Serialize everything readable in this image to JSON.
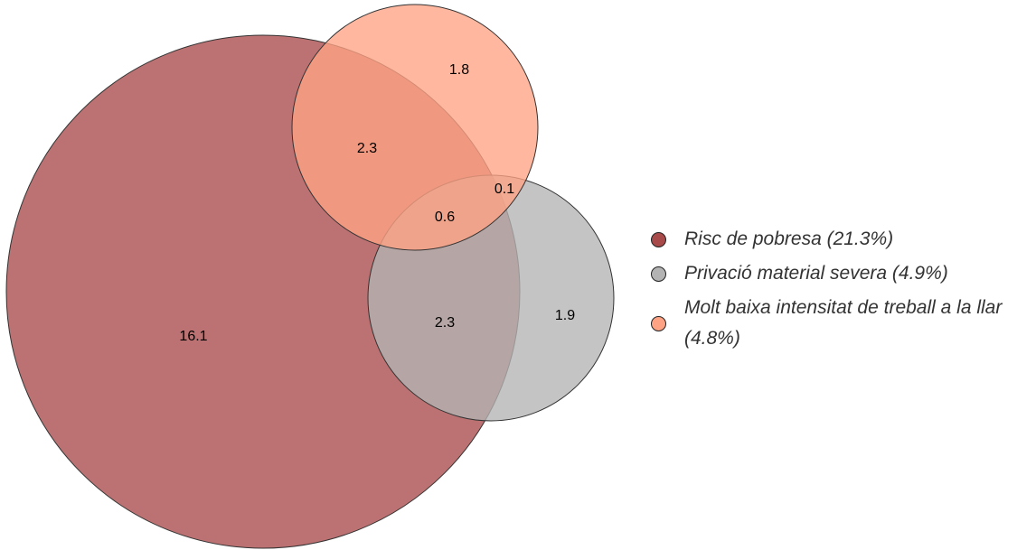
{
  "chart_data": {
    "type": "venn",
    "sets": [
      {
        "name": "Risc de pobresa (21.3%)",
        "color": "#a94a4a"
      },
      {
        "name": "Privació material severa (4.9%)",
        "color": "#b3b3b3"
      },
      {
        "name": "Molt baixa intensitat de treball a la llar (4.8%)",
        "color": "#ffa384"
      }
    ],
    "values": [
      16.1,
      1.9,
      1.8,
      2.3,
      2.3,
      0.1,
      0.6
    ]
  }
}
